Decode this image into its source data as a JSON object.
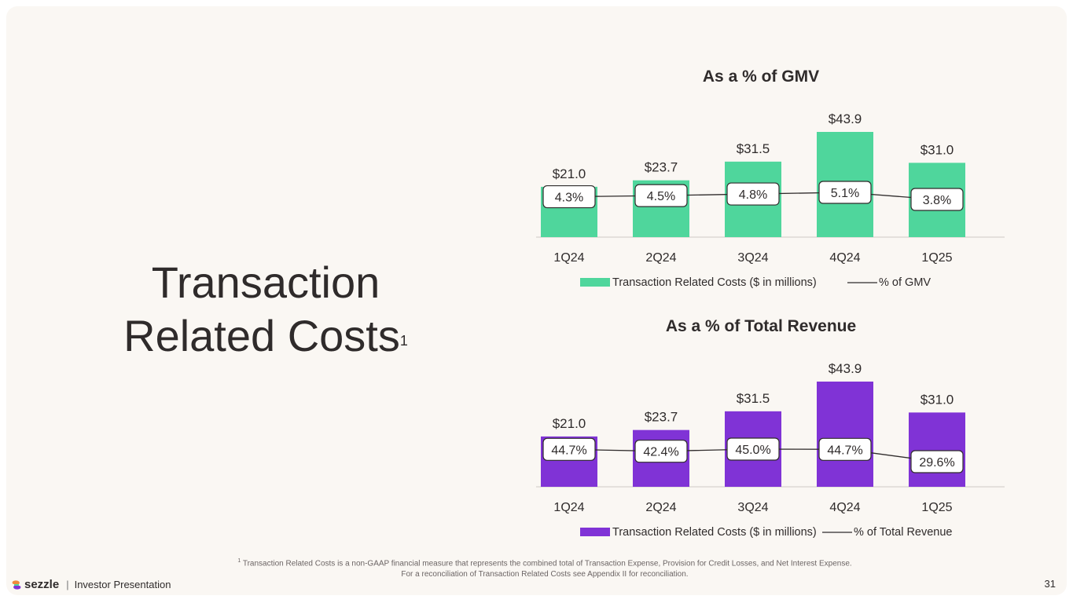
{
  "title": {
    "line1": "Transaction",
    "line2": "Related Costs",
    "superscript": "1"
  },
  "footnote": {
    "marker": "1",
    "line1": "Transaction Related Costs is a non-GAAP financial measure that represents the combined total of Transaction Expense, Provision for Credit Losses, and Net Interest Expense.",
    "line2": "For a reconciliation of Transaction Related Costs see Appendix II for reconciliation."
  },
  "footer": {
    "brand": "sezzle",
    "separator": "|",
    "label": "Investor Presentation",
    "page": "31",
    "logo_icon": "sezzle-logo-icon"
  },
  "colors": {
    "gmv_bar": "#4fd69c",
    "revenue_bar": "#8033d6",
    "line": "#2f2b2b",
    "text": "#2f2b2b"
  },
  "chart_data": [
    {
      "type": "bar",
      "title": "As a % of GMV",
      "categories": [
        "1Q24",
        "2Q24",
        "3Q24",
        "4Q24",
        "1Q25"
      ],
      "series": [
        {
          "name": "Transaction Related Costs ($ in millions)",
          "kind": "bar",
          "values": [
            21.0,
            23.7,
            31.5,
            43.9,
            31.0
          ],
          "labels": [
            "$21.0",
            "$23.7",
            "$31.5",
            "$43.9",
            "$31.0"
          ]
        },
        {
          "name": "% of GMV",
          "kind": "line",
          "values": [
            4.3,
            4.5,
            4.8,
            5.1,
            3.8
          ],
          "labels": [
            "4.3%",
            "4.5%",
            "4.8%",
            "5.1%",
            "3.8%"
          ]
        }
      ],
      "legend": "bottom-center",
      "grid": false
    },
    {
      "type": "bar",
      "title": "As a % of Total Revenue",
      "categories": [
        "1Q24",
        "2Q24",
        "3Q24",
        "4Q24",
        "1Q25"
      ],
      "series": [
        {
          "name": "Transaction Related Costs ($ in millions)",
          "kind": "bar",
          "values": [
            21.0,
            23.7,
            31.5,
            43.9,
            31.0
          ],
          "labels": [
            "$21.0",
            "$23.7",
            "$31.5",
            "$43.9",
            "$31.0"
          ]
        },
        {
          "name": "% of Total Revenue",
          "kind": "line",
          "values": [
            44.7,
            42.4,
            45.0,
            44.7,
            29.6
          ],
          "labels": [
            "44.7%",
            "42.4%",
            "45.0%",
            "44.7%",
            "29.6%"
          ]
        }
      ],
      "legend": "bottom-center",
      "grid": false
    }
  ]
}
